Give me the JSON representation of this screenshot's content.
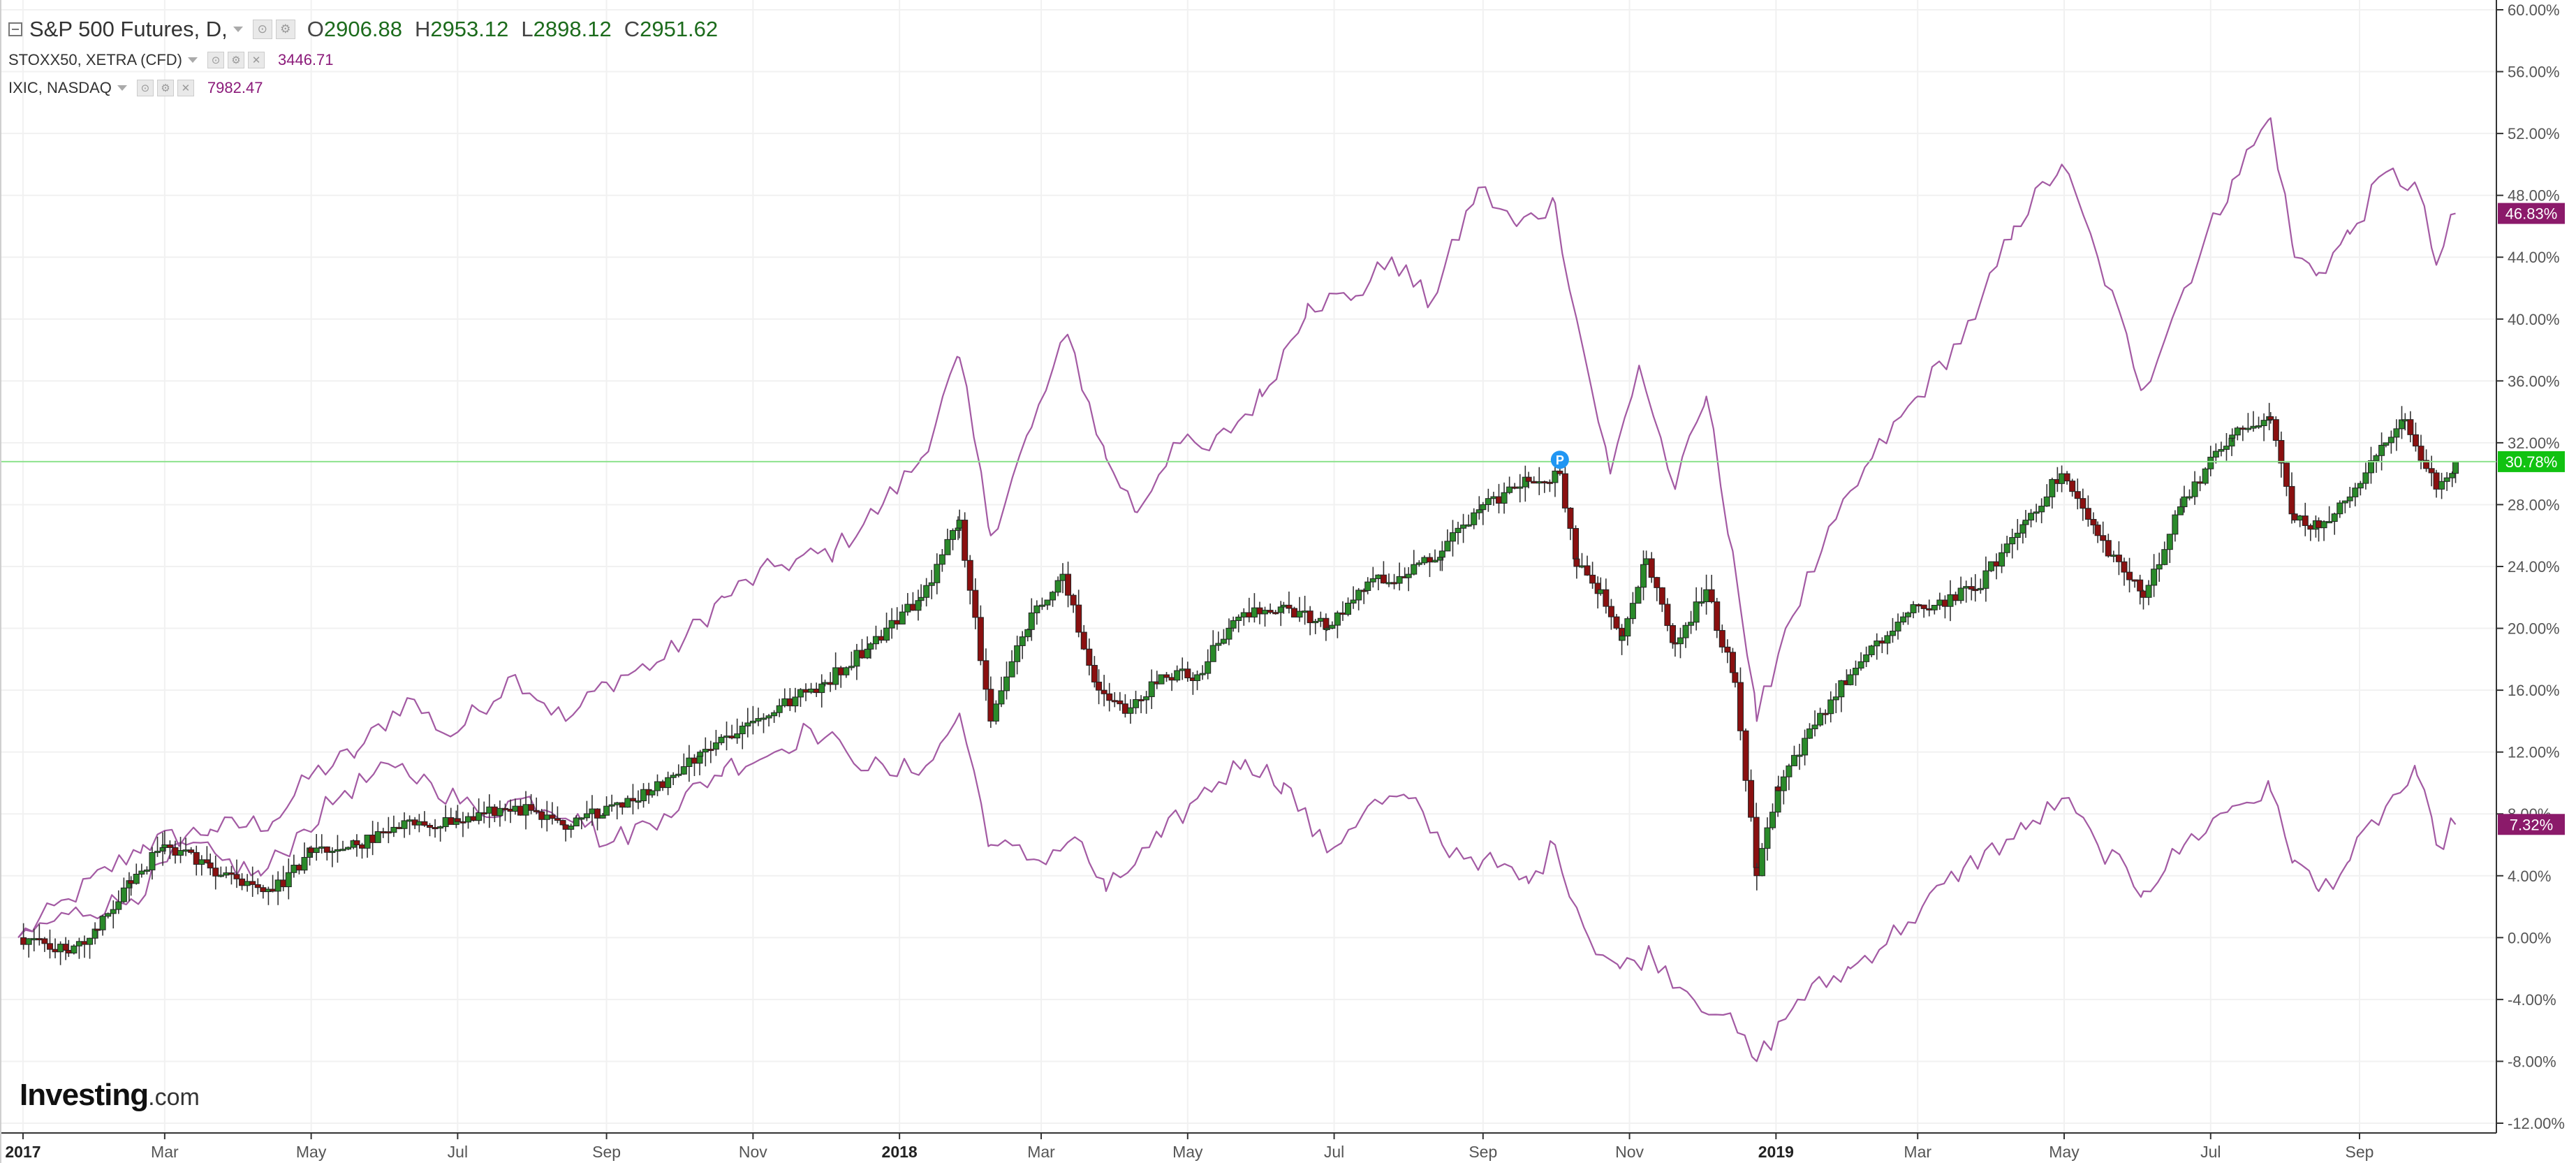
{
  "legend": {
    "main": {
      "title": "S&P 500 Futures, D,",
      "open_key": "O",
      "open": "2906.88",
      "high_key": "H",
      "high": "2953.12",
      "low_key": "L",
      "low": "2898.12",
      "close_key": "C",
      "close": "2951.62"
    },
    "stoxx": {
      "title": "STOXX50, XETRA (CFD)",
      "value": "3446.71"
    },
    "ixic": {
      "title": "IXIC, NASDAQ",
      "value": "7982.47"
    }
  },
  "logo": {
    "name": "Investing",
    "suffix": ".com"
  },
  "colors": {
    "up": "#2a8a2a",
    "down": "#8a1010",
    "compare_line": "#a35aa3",
    "current_line": "#8de28d",
    "badge_green": "#11c211",
    "badge_purple": "#8b1a6a",
    "grid": "#f1f1f1",
    "axis_text": "#555555",
    "marker": "#2196f3"
  },
  "chart_data": {
    "type": "candlestick",
    "yscale": "percent change",
    "ylim": [
      -12,
      60
    ],
    "grid": true,
    "y_ticks": [
      "60.00%",
      "56.00%",
      "52.00%",
      "48.00%",
      "44.00%",
      "40.00%",
      "36.00%",
      "32.00%",
      "28.00%",
      "24.00%",
      "20.00%",
      "16.00%",
      "12.00%",
      "8.00%",
      "4.00%",
      "0.00%",
      "-4.00%",
      "-8.00%",
      "-12.00%"
    ],
    "x_ticks": [
      {
        "label": "2017",
        "date": "2017-01-01",
        "bold": true
      },
      {
        "label": "Mar",
        "date": "2017-03-01",
        "bold": false
      },
      {
        "label": "May",
        "date": "2017-05-01",
        "bold": false
      },
      {
        "label": "Jul",
        "date": "2017-07-01",
        "bold": false
      },
      {
        "label": "Sep",
        "date": "2017-09-01",
        "bold": false
      },
      {
        "label": "Nov",
        "date": "2017-11-01",
        "bold": false
      },
      {
        "label": "2018",
        "date": "2018-01-01",
        "bold": true
      },
      {
        "label": "Mar",
        "date": "2018-03-01",
        "bold": false
      },
      {
        "label": "May",
        "date": "2018-05-01",
        "bold": false
      },
      {
        "label": "Jul",
        "date": "2018-07-01",
        "bold": false
      },
      {
        "label": "Sep",
        "date": "2018-09-01",
        "bold": false
      },
      {
        "label": "Nov",
        "date": "2018-11-01",
        "bold": false
      },
      {
        "label": "2019",
        "date": "2019-01-01",
        "bold": true
      },
      {
        "label": "Mar",
        "date": "2019-03-01",
        "bold": false
      },
      {
        "label": "May",
        "date": "2019-05-01",
        "bold": false
      },
      {
        "label": "Jul",
        "date": "2019-07-01",
        "bold": false
      },
      {
        "label": "Sep",
        "date": "2019-09-01",
        "bold": false
      }
    ],
    "x_range": [
      "2016-12-23",
      "2019-10-28"
    ],
    "current_value": 30.78,
    "series": [
      {
        "name": "S&P 500 Futures",
        "style": "candles",
        "badge": "30.78%",
        "points": [
          [
            "2016-12-30",
            0.0
          ],
          [
            "2017-01-20",
            -1.0
          ],
          [
            "2017-02-01",
            0.5
          ],
          [
            "2017-02-15",
            3.5
          ],
          [
            "2017-03-01",
            6.0
          ],
          [
            "2017-03-20",
            4.5
          ],
          [
            "2017-04-15",
            3.0
          ],
          [
            "2017-05-01",
            5.5
          ],
          [
            "2017-05-20",
            6.0
          ],
          [
            "2017-06-15",
            7.5
          ],
          [
            "2017-07-01",
            7.5
          ],
          [
            "2017-07-25",
            8.5
          ],
          [
            "2017-08-15",
            7.0
          ],
          [
            "2017-09-01",
            8.5
          ],
          [
            "2017-09-20",
            9.5
          ],
          [
            "2017-10-10",
            12.0
          ],
          [
            "2017-11-01",
            14.0
          ],
          [
            "2017-12-01",
            16.5
          ],
          [
            "2017-12-20",
            19.0
          ],
          [
            "2018-01-10",
            22.0
          ],
          [
            "2018-01-26",
            27.0
          ],
          [
            "2018-02-08",
            14.0
          ],
          [
            "2018-02-25",
            21.0
          ],
          [
            "2018-03-10",
            23.5
          ],
          [
            "2018-03-25",
            16.0
          ],
          [
            "2018-04-05",
            14.5
          ],
          [
            "2018-04-20",
            17.0
          ],
          [
            "2018-05-05",
            17.0
          ],
          [
            "2018-05-20",
            20.5
          ],
          [
            "2018-06-10",
            21.5
          ],
          [
            "2018-06-28",
            20.0
          ],
          [
            "2018-07-15",
            23.0
          ],
          [
            "2018-08-01",
            23.5
          ],
          [
            "2018-08-15",
            25.0
          ],
          [
            "2018-09-01",
            28.0
          ],
          [
            "2018-09-20",
            29.5
          ],
          [
            "2018-10-03",
            30.0
          ],
          [
            "2018-10-10",
            24.0
          ],
          [
            "2018-10-20",
            22.5
          ],
          [
            "2018-10-29",
            19.5
          ],
          [
            "2018-11-08",
            24.5
          ],
          [
            "2018-11-20",
            19.0
          ],
          [
            "2018-12-03",
            22.5
          ],
          [
            "2018-12-15",
            16.5
          ],
          [
            "2018-12-24",
            4.0
          ],
          [
            "2019-01-02",
            9.5
          ],
          [
            "2019-01-15",
            13.5
          ],
          [
            "2019-02-01",
            17.0
          ],
          [
            "2019-02-25",
            21.0
          ],
          [
            "2019-03-25",
            22.5
          ],
          [
            "2019-04-15",
            27.0
          ],
          [
            "2019-04-30",
            30.0
          ],
          [
            "2019-05-15",
            26.0
          ],
          [
            "2019-06-03",
            22.0
          ],
          [
            "2019-06-20",
            28.5
          ],
          [
            "2019-07-10",
            32.5
          ],
          [
            "2019-07-26",
            33.5
          ],
          [
            "2019-08-05",
            27.0
          ],
          [
            "2019-08-15",
            26.5
          ],
          [
            "2019-08-28",
            28.5
          ],
          [
            "2019-09-12",
            32.0
          ],
          [
            "2019-09-20",
            33.5
          ],
          [
            "2019-10-03",
            29.0
          ],
          [
            "2019-10-11",
            30.78
          ]
        ]
      },
      {
        "name": "IXIC, NASDAQ",
        "style": "line",
        "badge": "46.83%",
        "points": [
          [
            "2016-12-30",
            0.0
          ],
          [
            "2017-01-20",
            2.5
          ],
          [
            "2017-02-20",
            6.0
          ],
          [
            "2017-03-20",
            7.0
          ],
          [
            "2017-04-15",
            7.5
          ],
          [
            "2017-05-01",
            10.5
          ],
          [
            "2017-05-20",
            12.0
          ],
          [
            "2017-06-10",
            15.5
          ],
          [
            "2017-06-28",
            13.0
          ],
          [
            "2017-07-25",
            17.0
          ],
          [
            "2017-08-15",
            14.0
          ],
          [
            "2017-09-01",
            16.5
          ],
          [
            "2017-09-25",
            18.0
          ],
          [
            "2017-10-20",
            22.0
          ],
          [
            "2017-11-10",
            24.0
          ],
          [
            "2017-12-05",
            25.0
          ],
          [
            "2017-12-25",
            28.0
          ],
          [
            "2018-01-10",
            31.0
          ],
          [
            "2018-01-26",
            37.5
          ],
          [
            "2018-02-08",
            26.0
          ],
          [
            "2018-02-25",
            33.0
          ],
          [
            "2018-03-12",
            39.0
          ],
          [
            "2018-03-28",
            31.0
          ],
          [
            "2018-04-10",
            27.5
          ],
          [
            "2018-04-25",
            32.0
          ],
          [
            "2018-05-10",
            31.5
          ],
          [
            "2018-06-01",
            35.0
          ],
          [
            "2018-06-20",
            41.0
          ],
          [
            "2018-07-10",
            41.5
          ],
          [
            "2018-07-25",
            44.0
          ],
          [
            "2018-08-10",
            41.0
          ],
          [
            "2018-08-30",
            48.5
          ],
          [
            "2018-09-15",
            46.0
          ],
          [
            "2018-10-01",
            47.5
          ],
          [
            "2018-10-10",
            40.0
          ],
          [
            "2018-10-24",
            30.0
          ],
          [
            "2018-11-05",
            37.0
          ],
          [
            "2018-11-20",
            29.0
          ],
          [
            "2018-12-03",
            35.0
          ],
          [
            "2018-12-14",
            25.0
          ],
          [
            "2018-12-24",
            14.0
          ],
          [
            "2019-01-05",
            20.0
          ],
          [
            "2019-01-20",
            25.0
          ],
          [
            "2019-02-10",
            31.0
          ],
          [
            "2019-03-01",
            35.0
          ],
          [
            "2019-03-25",
            40.0
          ],
          [
            "2019-04-10",
            46.0
          ],
          [
            "2019-04-30",
            50.0
          ],
          [
            "2019-05-15",
            44.0
          ],
          [
            "2019-06-03",
            35.5
          ],
          [
            "2019-06-20",
            42.0
          ],
          [
            "2019-07-10",
            49.0
          ],
          [
            "2019-07-26",
            53.0
          ],
          [
            "2019-08-05",
            44.0
          ],
          [
            "2019-08-15",
            43.0
          ],
          [
            "2019-08-28",
            45.5
          ],
          [
            "2019-09-12",
            49.5
          ],
          [
            "2019-09-25",
            48.5
          ],
          [
            "2019-10-03",
            43.5
          ],
          [
            "2019-10-11",
            46.83
          ]
        ]
      },
      {
        "name": "STOXX50, XETRA (CFD)",
        "style": "line",
        "badge": "7.32%",
        "points": [
          [
            "2016-12-30",
            0.0
          ],
          [
            "2017-01-20",
            1.5
          ],
          [
            "2017-02-15",
            2.5
          ],
          [
            "2017-03-10",
            6.0
          ],
          [
            "2017-03-25",
            5.0
          ],
          [
            "2017-04-10",
            4.0
          ],
          [
            "2017-04-28",
            7.0
          ],
          [
            "2017-05-15",
            9.5
          ],
          [
            "2017-06-05",
            11.0
          ],
          [
            "2017-06-20",
            10.0
          ],
          [
            "2017-07-10",
            8.0
          ],
          [
            "2017-07-28",
            9.0
          ],
          [
            "2017-08-20",
            8.0
          ],
          [
            "2017-09-01",
            6.0
          ],
          [
            "2017-09-25",
            8.0
          ],
          [
            "2017-10-20",
            11.0
          ],
          [
            "2017-11-10",
            12.0
          ],
          [
            "2017-11-25",
            13.5
          ],
          [
            "2017-12-10",
            12.0
          ],
          [
            "2017-12-28",
            10.5
          ],
          [
            "2018-01-15",
            11.5
          ],
          [
            "2018-01-26",
            14.5
          ],
          [
            "2018-02-08",
            6.0
          ],
          [
            "2018-02-28",
            5.0
          ],
          [
            "2018-03-15",
            6.5
          ],
          [
            "2018-03-28",
            3.0
          ],
          [
            "2018-04-20",
            6.5
          ],
          [
            "2018-05-05",
            9.0
          ],
          [
            "2018-05-25",
            11.5
          ],
          [
            "2018-06-10",
            10.0
          ],
          [
            "2018-06-28",
            5.5
          ],
          [
            "2018-07-15",
            8.5
          ],
          [
            "2018-08-01",
            9.0
          ],
          [
            "2018-08-15",
            6.0
          ],
          [
            "2018-09-01",
            5.0
          ],
          [
            "2018-09-20",
            3.5
          ],
          [
            "2018-10-01",
            6.0
          ],
          [
            "2018-10-15",
            0.0
          ],
          [
            "2018-10-28",
            -2.0
          ],
          [
            "2018-11-10",
            -1.0
          ],
          [
            "2018-11-25",
            -3.5
          ],
          [
            "2018-12-10",
            -5.0
          ],
          [
            "2018-12-24",
            -8.0
          ],
          [
            "2019-01-10",
            -4.0
          ],
          [
            "2019-02-01",
            -2.0
          ],
          [
            "2019-02-25",
            1.0
          ],
          [
            "2019-03-20",
            4.5
          ],
          [
            "2019-04-15",
            7.0
          ],
          [
            "2019-04-30",
            9.0
          ],
          [
            "2019-05-15",
            6.0
          ],
          [
            "2019-06-03",
            3.0
          ],
          [
            "2019-06-20",
            6.0
          ],
          [
            "2019-07-10",
            8.5
          ],
          [
            "2019-07-26",
            9.5
          ],
          [
            "2019-08-05",
            5.0
          ],
          [
            "2019-08-15",
            3.0
          ],
          [
            "2019-08-28",
            5.0
          ],
          [
            "2019-09-12",
            8.5
          ],
          [
            "2019-09-25",
            10.5
          ],
          [
            "2019-10-03",
            6.0
          ],
          [
            "2019-10-11",
            7.32
          ]
        ]
      }
    ]
  }
}
